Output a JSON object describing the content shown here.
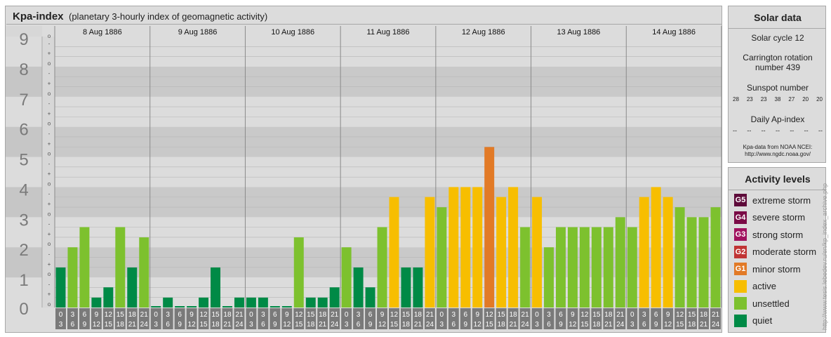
{
  "header": {
    "title": "Kpa-index",
    "subtitle": "(planetary 3-hourly index of geomagnetic activity)"
  },
  "solar": {
    "title": "Solar data",
    "cycle": "Solar cycle 12",
    "carrington_line1": "Carrington rotation",
    "carrington_line2": "number 439",
    "sunspot_title": "Sunspot number",
    "sunspot_values": [
      "28",
      "23",
      "23",
      "38",
      "27",
      "20",
      "20"
    ],
    "ap_title": "Daily Ap-index",
    "ap_values": [
      "--",
      "--",
      "--",
      "--",
      "--",
      "--",
      "--"
    ],
    "source_line1": "Kpa-data from NOAA NCEI:",
    "source_line2": "http://www.ngdc.noaa.gov/"
  },
  "activity": {
    "title": "Activity levels",
    "levels": [
      {
        "badge": "G5",
        "label": "extreme storm",
        "color": "#5e0b3a"
      },
      {
        "badge": "G4",
        "label": "severe storm",
        "color": "#7a0a45"
      },
      {
        "badge": "G3",
        "label": "strong storm",
        "color": "#a0115e"
      },
      {
        "badge": "G2",
        "label": "moderate storm",
        "color": "#c03434"
      },
      {
        "badge": "G1",
        "label": "minor storm",
        "color": "#e27a26"
      },
      {
        "badge": "",
        "label": "active",
        "color": "#f7be00"
      },
      {
        "badge": "",
        "label": "unsettled",
        "color": "#7dc12e"
      },
      {
        "badge": "",
        "label": "quiet",
        "color": "#008a46"
      }
    ]
  },
  "watermark": "http://www.tesis.lebedev.ru/en/kp_index_archive.php",
  "chart_data": {
    "type": "bar",
    "title": "Kpa-index",
    "subtitle": "(planetary 3-hourly index of geomagnetic activity)",
    "ylim": [
      0,
      9
    ],
    "y_ticks": [
      "0",
      "1",
      "2",
      "3",
      "4",
      "5",
      "6",
      "7",
      "8",
      "9"
    ],
    "y_subticks": [
      "o",
      "+",
      "-"
    ],
    "days": [
      "8 Aug 1886",
      "9 Aug 1886",
      "10 Aug 1886",
      "11 Aug 1886",
      "12 Aug 1886",
      "13 Aug 1886",
      "14 Aug 1886"
    ],
    "interval_start": [
      "0",
      "3",
      "6",
      "9",
      "12",
      "15",
      "18",
      "21"
    ],
    "interval_end": [
      "3",
      "6",
      "9",
      "12",
      "15",
      "18",
      "21",
      "24"
    ],
    "values": [
      [
        1.33,
        2.0,
        2.67,
        0.33,
        0.67,
        2.67,
        1.33,
        2.33
      ],
      [
        0.0,
        0.33,
        0.0,
        0.0,
        0.33,
        1.33,
        0.0,
        0.33
      ],
      [
        0.33,
        0.33,
        0.0,
        0.0,
        2.33,
        0.33,
        0.33,
        0.67
      ],
      [
        2.0,
        1.33,
        0.67,
        2.67,
        3.67,
        1.33,
        1.33,
        3.67
      ],
      [
        3.33,
        4.0,
        4.0,
        4.0,
        5.33,
        3.67,
        4.0,
        2.67
      ],
      [
        3.67,
        2.0,
        2.67,
        2.67,
        2.67,
        2.67,
        2.67,
        3.0
      ],
      [
        2.67,
        3.67,
        4.0,
        3.67,
        3.33,
        3.0,
        3.0,
        3.33
      ]
    ],
    "color_scale": {
      "quiet": "#008a46",
      "unsettled": "#7dc12e",
      "active": "#f7be00",
      "G1": "#e27a26",
      "G2": "#c03434",
      "G3": "#a0115e",
      "G4": "#7a0a45",
      "G5": "#5e0b3a"
    },
    "grid": true
  }
}
